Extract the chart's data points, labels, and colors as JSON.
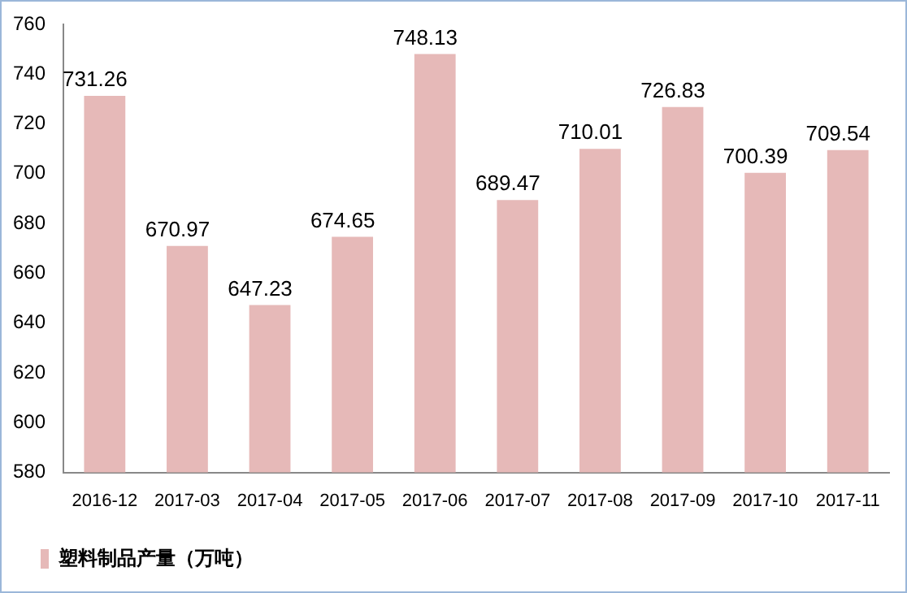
{
  "chart_data": {
    "type": "bar",
    "categories": [
      "2016-12",
      "2017-03",
      "2017-04",
      "2017-05",
      "2017-06",
      "2017-07",
      "2017-08",
      "2017-09",
      "2017-10",
      "2017-11"
    ],
    "series": [
      {
        "name": "塑料制品产量（万吨）",
        "color": "#e6b9b8",
        "values": [
          731.26,
          670.97,
          647.23,
          674.65,
          748.13,
          689.47,
          710.01,
          726.83,
          700.39,
          709.54
        ]
      }
    ],
    "ylim": [
      580,
      760
    ],
    "yticks": [
      580,
      600,
      620,
      640,
      660,
      680,
      700,
      720,
      740,
      760
    ],
    "grid": false,
    "legend": "bottom",
    "data_labels": true
  }
}
